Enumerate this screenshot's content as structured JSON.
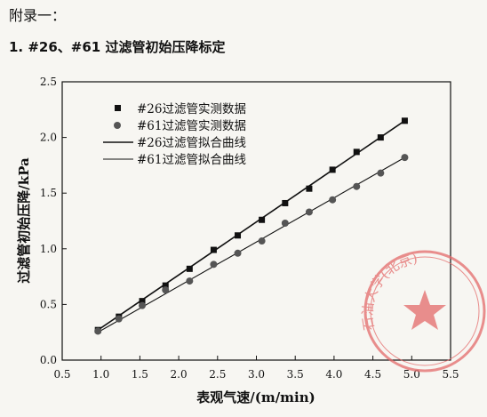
{
  "heading": "附录一：",
  "subheading": "1. #26、#61 过滤管初始压降标定",
  "colors": {
    "ink": "#111111",
    "marker_61": "#555555",
    "stamp": "#e46a6a"
  },
  "stamp": {
    "text": "石油大学(北京)"
  },
  "chart_data": {
    "type": "scatter",
    "xlabel": "表观气速/(m/min)",
    "ylabel": "过滤管初始压降/kPa",
    "xlim": [
      0.5,
      5.5
    ],
    "ylim": [
      0.0,
      2.5
    ],
    "xticks": [
      0.5,
      1.0,
      1.5,
      2.0,
      2.5,
      3.0,
      3.5,
      4.0,
      4.5,
      5.0,
      5.5
    ],
    "yticks": [
      0.0,
      0.5,
      1.0,
      1.5,
      2.0,
      2.5
    ],
    "grid": false,
    "legend_position": "top-left",
    "series": [
      {
        "name": "#26过滤管实测数据",
        "kind": "markers",
        "marker": "square",
        "x": [
          0.96,
          1.23,
          1.53,
          1.83,
          2.14,
          2.45,
          2.76,
          3.07,
          3.37,
          3.68,
          3.98,
          4.29,
          4.6,
          4.91
        ],
        "y": [
          0.27,
          0.39,
          0.53,
          0.67,
          0.82,
          0.99,
          1.12,
          1.26,
          1.41,
          1.54,
          1.71,
          1.87,
          2.0,
          2.15
        ]
      },
      {
        "name": "#61过滤管实测数据",
        "kind": "markers",
        "marker": "circle",
        "x": [
          0.96,
          1.23,
          1.53,
          1.83,
          2.14,
          2.45,
          2.76,
          3.07,
          3.37,
          3.68,
          3.98,
          4.29,
          4.6,
          4.91
        ],
        "y": [
          0.26,
          0.37,
          0.49,
          0.63,
          0.71,
          0.86,
          0.96,
          1.07,
          1.23,
          1.33,
          1.44,
          1.56,
          1.68,
          1.82
        ]
      },
      {
        "name": "#26过滤管拟合曲线",
        "kind": "line",
        "x": [
          0.96,
          4.91
        ],
        "y": [
          0.27,
          2.15
        ]
      },
      {
        "name": "#61过滤管拟合曲线",
        "kind": "line",
        "x": [
          0.96,
          4.91
        ],
        "y": [
          0.25,
          1.82
        ]
      }
    ]
  }
}
